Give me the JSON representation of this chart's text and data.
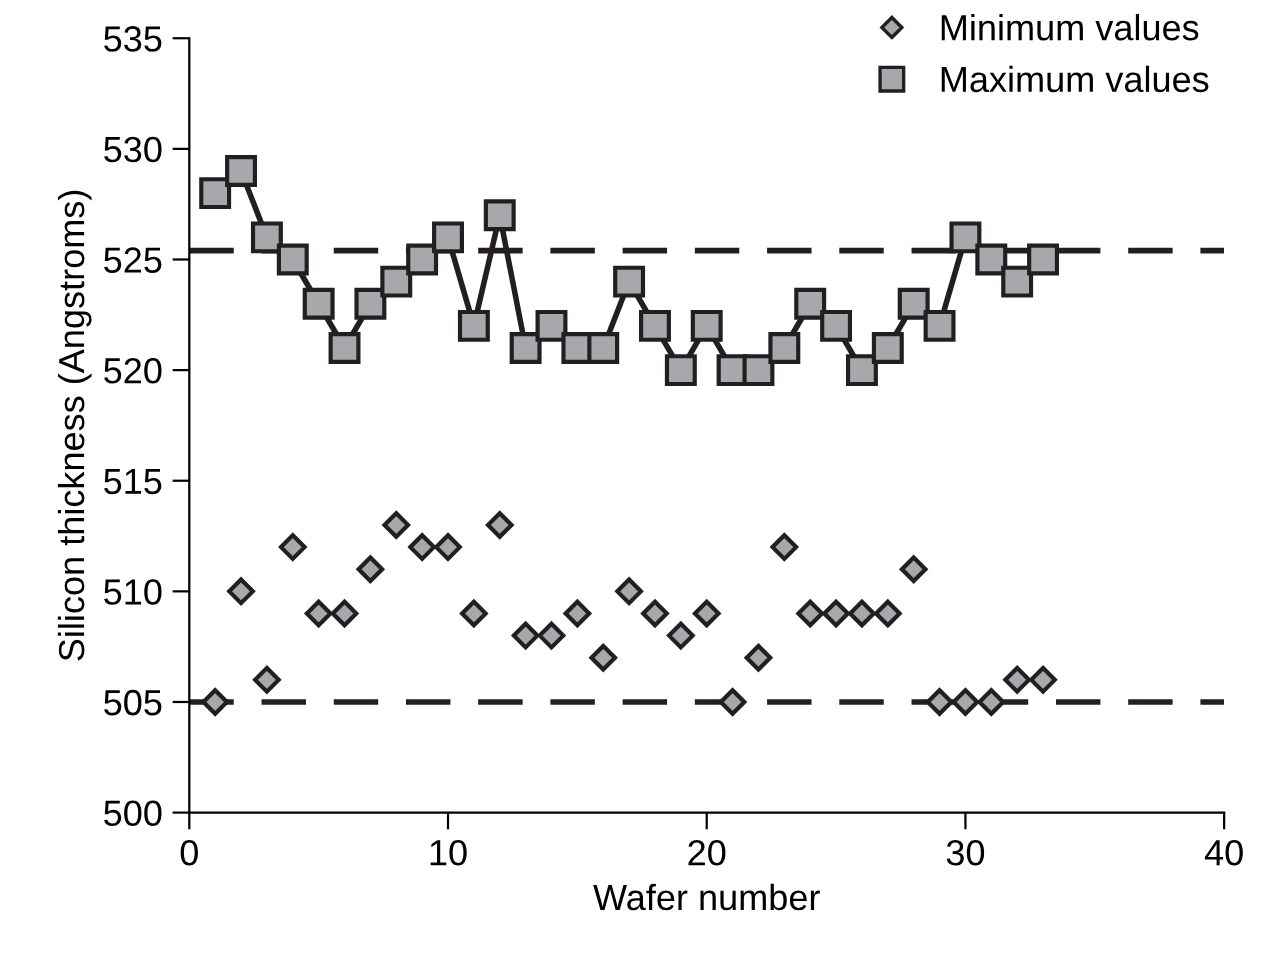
{
  "chart_data": {
    "type": "scatter",
    "xlabel": "Wafer number",
    "ylabel": "Silicon thickness (Angstroms)",
    "x": [
      1,
      2,
      3,
      4,
      5,
      6,
      7,
      8,
      9,
      10,
      11,
      12,
      13,
      14,
      15,
      16,
      17,
      18,
      19,
      20,
      21,
      22,
      23,
      24,
      25,
      26,
      27,
      28,
      29,
      30,
      31,
      32,
      33
    ],
    "series": [
      {
        "name": "Minimum values",
        "marker": "diamond",
        "color": "#a6a8ab",
        "values": [
          505,
          510,
          506,
          512,
          509,
          509,
          511,
          513,
          512,
          512,
          509,
          513,
          508,
          508,
          509,
          507,
          510,
          509,
          508,
          509,
          505,
          507,
          512,
          509,
          509,
          509,
          509,
          511,
          505,
          505,
          505,
          506,
          506
        ]
      },
      {
        "name": "Maximum values",
        "type": "line",
        "marker": "square",
        "color": "#a6a8ab",
        "values": [
          528,
          529,
          526,
          525,
          523,
          521,
          523,
          524,
          525,
          526,
          522,
          527,
          521,
          522,
          521,
          521,
          524,
          522,
          520,
          522,
          520,
          520,
          521,
          523,
          522,
          520,
          521,
          523,
          522,
          526,
          525,
          524,
          525
        ]
      }
    ],
    "ref_lines": [
      {
        "axis": "y",
        "value": 525.4,
        "line_style": "dashed"
      },
      {
        "axis": "y",
        "value": 505,
        "line_style": "dashed"
      }
    ],
    "xlim": [
      0,
      40
    ],
    "xticks": [
      0,
      10,
      20,
      30,
      40
    ],
    "ylim": [
      500,
      535
    ],
    "yticks": [
      500,
      505,
      510,
      515,
      520,
      525,
      530,
      535
    ],
    "grid": false,
    "legend": "top right"
  }
}
